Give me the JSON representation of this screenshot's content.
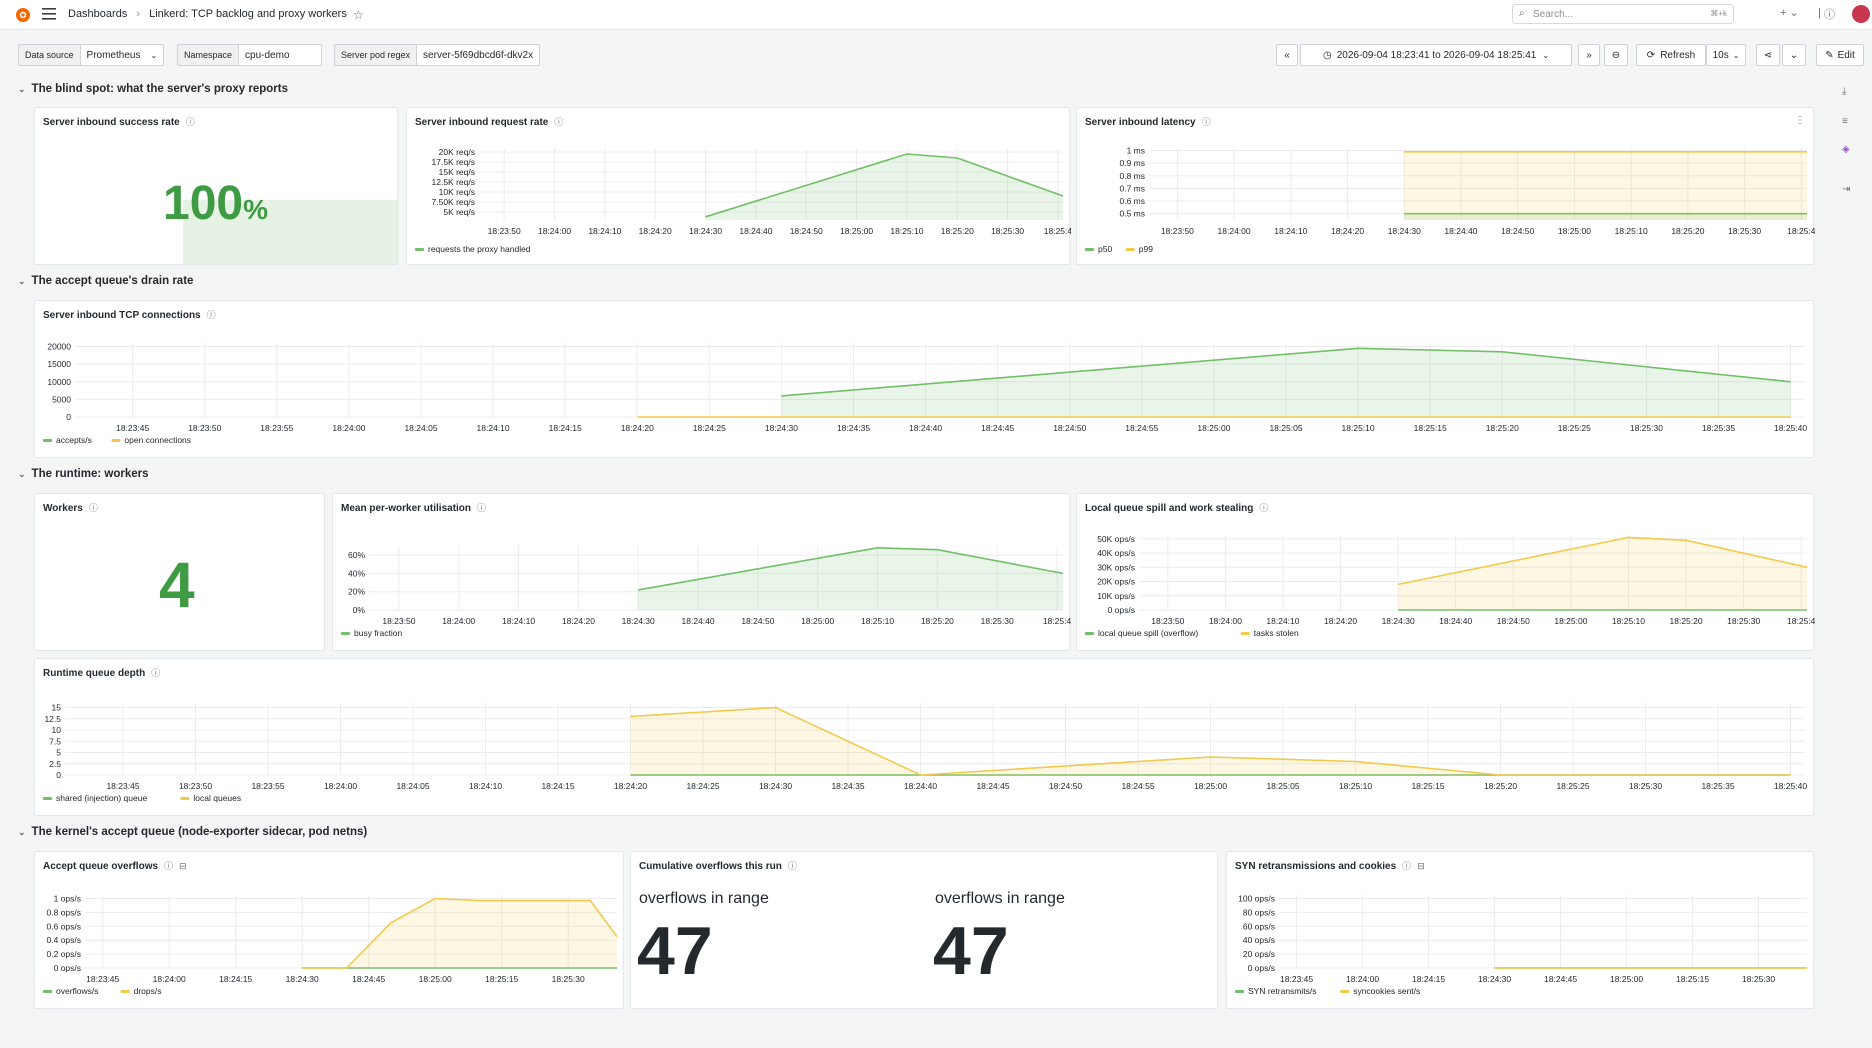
{
  "topbar": {
    "breadcrumb": [
      "Dashboards",
      "Linkerd: TCP backlog and proxy workers"
    ],
    "search_placeholder": "Search...",
    "search_shortcut": "⌘+k"
  },
  "toolbar": {
    "variables": [
      {
        "label": "Data source",
        "value": "Prometheus"
      },
      {
        "label": "Namespace",
        "value": "cpu-demo"
      },
      {
        "label": "Server pod regex",
        "value": "server-5f69dbcd6f-dkv2x"
      }
    ],
    "time_range": "2026-09-04 18:23:41 to 2026-09-04 18:25:41",
    "refresh_label": "Refresh",
    "refresh_interval": "10s",
    "edit_label": "Edit"
  },
  "rows": [
    {
      "title": "The blind spot: what the server's proxy reports"
    },
    {
      "title": "The accept queue's drain rate"
    },
    {
      "title": "The runtime: workers"
    },
    {
      "title": "The kernel's accept queue (node-exporter sidecar, pod netns)"
    }
  ],
  "colors": {
    "green": "#73bf69",
    "yellow": "#f2c94c",
    "stat_green": "#3e9b43"
  },
  "panels": {
    "success_rate": {
      "title": "Server inbound success rate",
      "value": "100",
      "unit": "%"
    },
    "workers": {
      "title": "Workers",
      "value": "4"
    },
    "cumulative": {
      "title": "Cumulative overflows this run",
      "caption": "overflows in range",
      "value": "47"
    }
  },
  "chart_data": [
    {
      "id": "request_rate",
      "type": "area",
      "title": "Server inbound request rate",
      "y_ticks": [
        "5K req/s",
        "7.50K req/s",
        "10K req/s",
        "12.5K req/s",
        "15K req/s",
        "17.5K req/s",
        "20K req/s"
      ],
      "x_ticks": [
        "18:23:50",
        "18:24:00",
        "18:24:10",
        "18:24:20",
        "18:24:30",
        "18:24:40",
        "18:24:50",
        "18:25:00",
        "18:25:10",
        "18:25:20",
        "18:25:30",
        "18:25:4"
      ],
      "ylim": [
        3000,
        21000
      ],
      "series": [
        {
          "name": "requests the proxy handled",
          "color": "#73bf69",
          "points": [
            [
              "18:24:30",
              3800
            ],
            [
              "18:25:10",
              19500
            ],
            [
              "18:25:20",
              18500
            ],
            [
              "18:25:41",
              9000
            ]
          ]
        }
      ]
    },
    {
      "id": "latency",
      "type": "area",
      "title": "Server inbound latency",
      "y_ticks": [
        "0.5 ms",
        "0.6 ms",
        "0.7 ms",
        "0.8 ms",
        "0.9 ms",
        "1 ms"
      ],
      "x_ticks": [
        "18:23:50",
        "18:24:00",
        "18:24:10",
        "18:24:20",
        "18:24:30",
        "18:24:40",
        "18:24:50",
        "18:25:00",
        "18:25:10",
        "18:25:20",
        "18:25:30",
        "18:25:4"
      ],
      "ylim": [
        0.45,
        1.02
      ],
      "series": [
        {
          "name": "p50",
          "color": "#73bf69",
          "points": [
            [
              "18:24:30",
              0.5
            ],
            [
              "18:25:41",
              0.5
            ]
          ]
        },
        {
          "name": "p99",
          "color": "#f2c94c",
          "points": [
            [
              "18:24:30",
              0.99
            ],
            [
              "18:25:41",
              0.99
            ]
          ]
        }
      ]
    },
    {
      "id": "tcp_connections",
      "type": "area",
      "title": "Server inbound TCP connections",
      "y_ticks": [
        "0",
        "5000",
        "10000",
        "15000",
        "20000"
      ],
      "x_ticks": [
        "18:23:45",
        "18:23:50",
        "18:23:55",
        "18:24:00",
        "18:24:05",
        "18:24:10",
        "18:24:15",
        "18:24:20",
        "18:24:25",
        "18:24:30",
        "18:24:35",
        "18:24:40",
        "18:24:45",
        "18:24:50",
        "18:24:55",
        "18:25:00",
        "18:25:05",
        "18:25:10",
        "18:25:15",
        "18:25:20",
        "18:25:25",
        "18:25:30",
        "18:25:35",
        "18:25:40"
      ],
      "ylim": [
        0,
        21000
      ],
      "series": [
        {
          "name": "accepts/s",
          "color": "#73bf69",
          "points": [
            [
              "18:24:30",
              6000
            ],
            [
              "18:25:10",
              19500
            ],
            [
              "18:25:20",
              18500
            ],
            [
              "18:25:40",
              10000
            ]
          ]
        },
        {
          "name": "open connections",
          "color": "#f2c94c",
          "points": [
            [
              "18:24:20",
              0
            ],
            [
              "18:25:40",
              0
            ]
          ]
        }
      ]
    },
    {
      "id": "utilisation",
      "type": "area",
      "title": "Mean per-worker utilisation",
      "y_ticks": [
        "0%",
        "20%",
        "40%",
        "60%"
      ],
      "x_ticks": [
        "18:23:50",
        "18:24:00",
        "18:24:10",
        "18:24:20",
        "18:24:30",
        "18:24:40",
        "18:24:50",
        "18:25:00",
        "18:25:10",
        "18:25:20",
        "18:25:30",
        "18:25:4"
      ],
      "ylim": [
        0,
        70
      ],
      "series": [
        {
          "name": "busy fraction",
          "color": "#73bf69",
          "points": [
            [
              "18:24:30",
              22
            ],
            [
              "18:25:10",
              68
            ],
            [
              "18:25:20",
              66
            ],
            [
              "18:25:41",
              40
            ]
          ]
        }
      ]
    },
    {
      "id": "queue_spill",
      "type": "area",
      "title": "Local queue spill and work stealing",
      "y_ticks": [
        "0 ops/s",
        "10K ops/s",
        "20K ops/s",
        "30K ops/s",
        "40K ops/s",
        "50K ops/s"
      ],
      "x_ticks": [
        "18:23:50",
        "18:24:00",
        "18:24:10",
        "18:24:20",
        "18:24:30",
        "18:24:40",
        "18:24:50",
        "18:25:00",
        "18:25:10",
        "18:25:20",
        "18:25:30",
        "18:25:4"
      ],
      "ylim": [
        0,
        52000
      ],
      "series": [
        {
          "name": "local queue spill (overflow)",
          "color": "#73bf69",
          "points": [
            [
              "18:24:30",
              0
            ],
            [
              "18:25:41",
              0
            ]
          ]
        },
        {
          "name": "tasks stolen",
          "color": "#f2c94c",
          "points": [
            [
              "18:24:30",
              18000
            ],
            [
              "18:25:10",
              51000
            ],
            [
              "18:25:20",
              49000
            ],
            [
              "18:25:41",
              30000
            ]
          ]
        }
      ]
    },
    {
      "id": "runtime_queue",
      "type": "area",
      "title": "Runtime queue depth",
      "y_ticks": [
        "0",
        "2.5",
        "5",
        "7.5",
        "10",
        "12.5",
        "15"
      ],
      "x_ticks": [
        "18:23:45",
        "18:23:50",
        "18:23:55",
        "18:24:00",
        "18:24:05",
        "18:24:10",
        "18:24:15",
        "18:24:20",
        "18:24:25",
        "18:24:30",
        "18:24:35",
        "18:24:40",
        "18:24:45",
        "18:24:50",
        "18:24:55",
        "18:25:00",
        "18:25:05",
        "18:25:10",
        "18:25:15",
        "18:25:20",
        "18:25:25",
        "18:25:30",
        "18:25:35",
        "18:25:40"
      ],
      "ylim": [
        0,
        16
      ],
      "series": [
        {
          "name": "shared (injection) queue",
          "color": "#73bf69",
          "points": [
            [
              "18:24:20",
              0
            ],
            [
              "18:25:40",
              0
            ]
          ]
        },
        {
          "name": "local queues",
          "color": "#f2c94c",
          "points": [
            [
              "18:24:20",
              13
            ],
            [
              "18:24:30",
              15
            ],
            [
              "18:24:40",
              0
            ],
            [
              "18:25:00",
              4
            ],
            [
              "18:25:10",
              3
            ],
            [
              "18:25:20",
              0
            ],
            [
              "18:25:40",
              0
            ]
          ]
        }
      ]
    },
    {
      "id": "accept_overflows",
      "type": "area",
      "title": "Accept queue overflows",
      "y_ticks": [
        "0 ops/s",
        "0.2 ops/s",
        "0.4 ops/s",
        "0.6 ops/s",
        "0.8 ops/s",
        "1 ops/s"
      ],
      "x_ticks": [
        "18:23:45",
        "18:24:00",
        "18:24:15",
        "18:24:30",
        "18:24:45",
        "18:25:00",
        "18:25:15",
        "18:25:30"
      ],
      "ylim": [
        0,
        1.05
      ],
      "series": [
        {
          "name": "overflows/s",
          "color": "#73bf69",
          "points": [
            [
              "18:24:30",
              0
            ],
            [
              "18:25:41",
              0
            ]
          ]
        },
        {
          "name": "drops/s",
          "color": "#f2c94c",
          "points": [
            [
              "18:24:30",
              0
            ],
            [
              "18:24:40",
              0
            ],
            [
              "18:24:50",
              0.65
            ],
            [
              "18:25:00",
              1
            ],
            [
              "18:25:10",
              0.97
            ],
            [
              "18:25:35",
              0.97
            ],
            [
              "18:25:41",
              0.45
            ]
          ]
        }
      ]
    },
    {
      "id": "syn_retrans",
      "type": "line",
      "title": "SYN retransmissions and cookies",
      "y_ticks": [
        "0 ops/s",
        "20 ops/s",
        "40 ops/s",
        "60 ops/s",
        "80 ops/s",
        "100 ops/s"
      ],
      "x_ticks": [
        "18:23:45",
        "18:24:00",
        "18:24:15",
        "18:24:30",
        "18:24:45",
        "18:25:00",
        "18:25:15",
        "18:25:30"
      ],
      "ylim": [
        0,
        105
      ],
      "series": [
        {
          "name": "SYN retransmits/s",
          "color": "#73bf69",
          "points": [
            [
              "18:24:30",
              0
            ],
            [
              "18:25:41",
              0
            ]
          ]
        },
        {
          "name": "syncookies sent/s",
          "color": "#f2c94c",
          "points": [
            [
              "18:24:30",
              0
            ],
            [
              "18:25:41",
              0
            ]
          ]
        }
      ]
    }
  ]
}
